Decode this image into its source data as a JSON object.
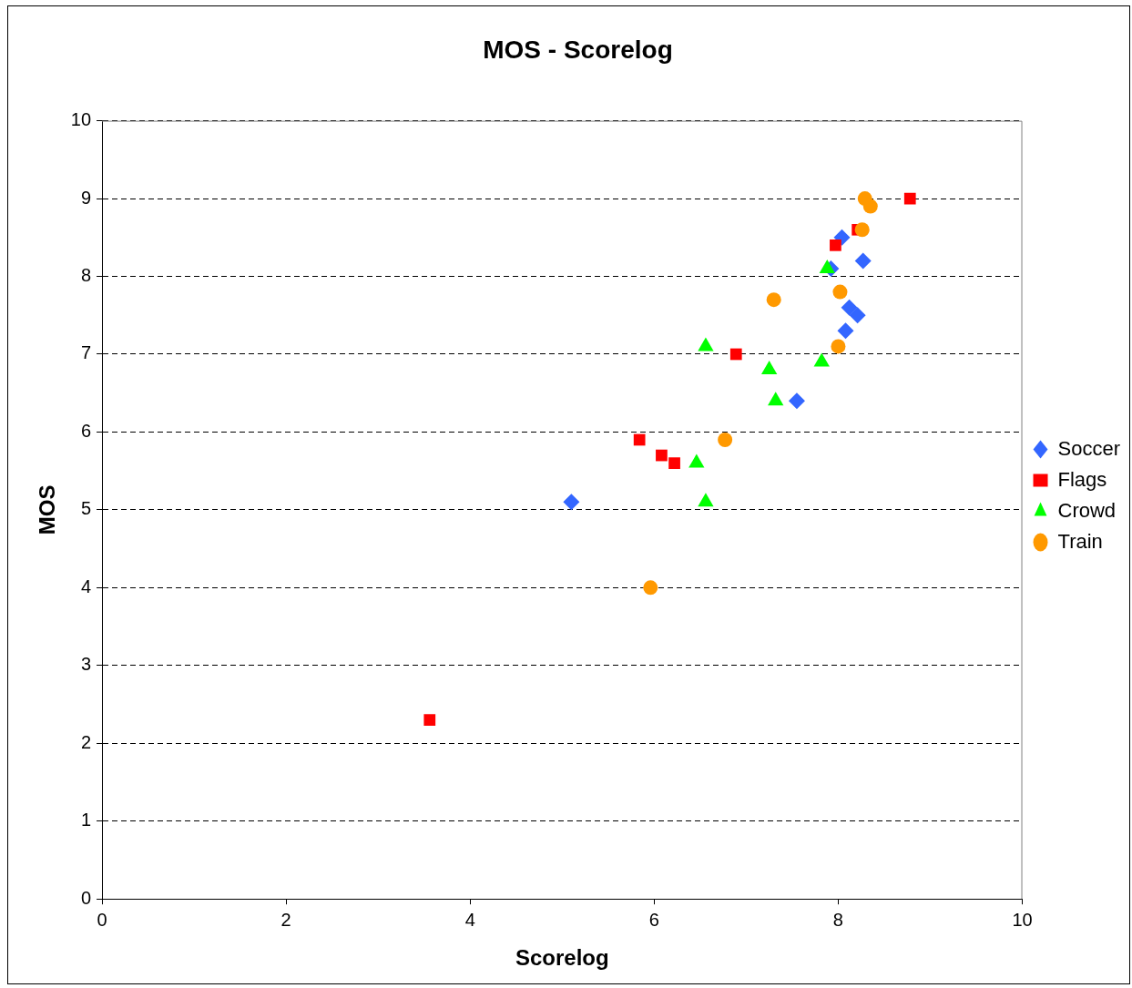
{
  "chart_data": {
    "type": "scatter",
    "title": "MOS - Scorelog",
    "xlabel": "Scorelog",
    "ylabel": "MOS",
    "xlim": [
      0,
      10
    ],
    "xticks": [
      0,
      2,
      4,
      6,
      8,
      10
    ],
    "ylim": [
      0,
      10
    ],
    "yticks": [
      0,
      1,
      2,
      3,
      4,
      5,
      6,
      7,
      8,
      9,
      10
    ],
    "grid": "y",
    "legend": "right",
    "series": [
      {
        "name": "Soccer",
        "color": "#3366ff",
        "marker": "diamond",
        "x": [
          5.1,
          7.55,
          8.08,
          8.12,
          8.21,
          7.92,
          8.04,
          8.27
        ],
        "values": [
          5.1,
          6.4,
          7.3,
          7.6,
          7.5,
          8.1,
          8.5,
          8.2
        ]
      },
      {
        "name": "Flags",
        "color": "#ff0000",
        "marker": "square",
        "x": [
          3.56,
          5.84,
          6.08,
          6.22,
          6.89,
          7.97,
          8.21,
          8.78
        ],
        "values": [
          2.3,
          5.9,
          5.7,
          5.6,
          7.0,
          8.4,
          8.6,
          9.0
        ]
      },
      {
        "name": "Crowd",
        "color": "#00ff00",
        "marker": "triangle",
        "x": [
          6.56,
          7.25,
          7.32,
          7.82,
          7.88,
          6.46,
          6.56
        ],
        "values": [
          7.1,
          6.8,
          6.4,
          6.9,
          8.1,
          5.6,
          5.1
        ]
      },
      {
        "name": "Train",
        "color": "#ff9900",
        "marker": "circle",
        "x": [
          5.96,
          6.77,
          7.3,
          8.02,
          8.0,
          8.29,
          8.35,
          8.26
        ],
        "values": [
          4.0,
          5.9,
          7.7,
          7.8,
          7.1,
          9.0,
          8.9,
          8.6
        ]
      }
    ]
  }
}
